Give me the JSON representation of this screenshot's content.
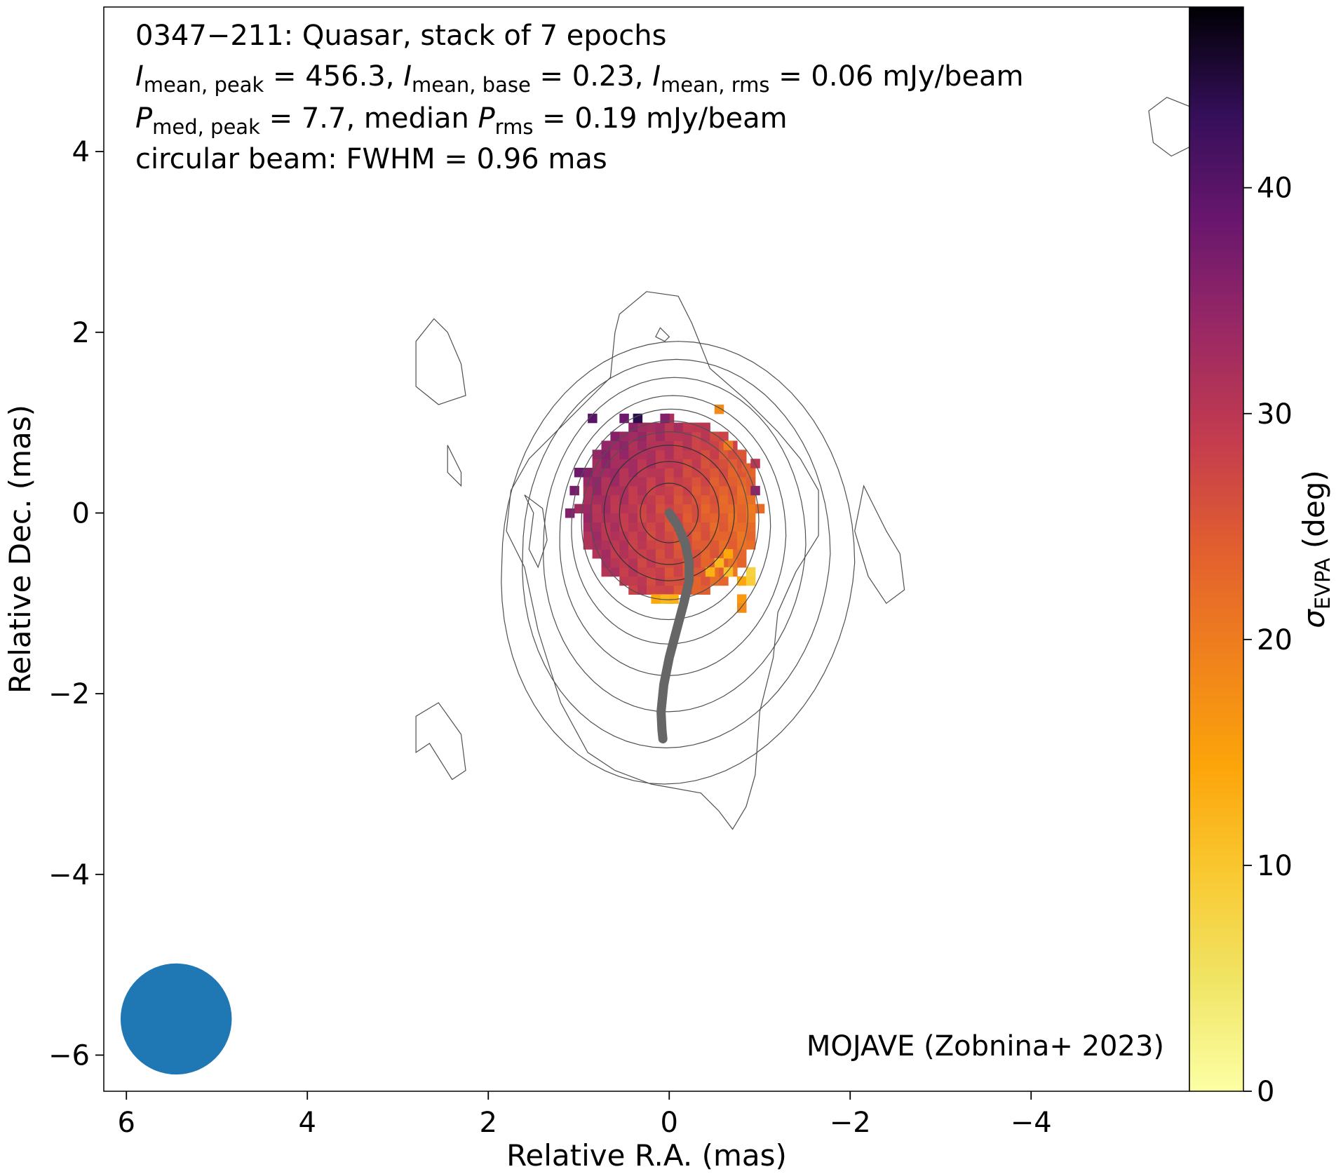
{
  "chart_data": {
    "type": "heatmap",
    "annotation_lines": [
      {
        "parts": [
          {
            "t": "0347−211: Quasar, stack of 7 epochs"
          }
        ]
      },
      {
        "parts": [
          {
            "t": "I",
            "style": "italic"
          },
          {
            "t": "mean, peak",
            "style": "sub"
          },
          {
            "t": " = 456.3, "
          },
          {
            "t": "I",
            "style": "italic"
          },
          {
            "t": "mean, base",
            "style": "sub"
          },
          {
            "t": " = 0.23, "
          },
          {
            "t": "I",
            "style": "italic"
          },
          {
            "t": "mean, rms",
            "style": "sub"
          },
          {
            "t": " = 0.06 mJy/beam"
          }
        ]
      },
      {
        "parts": [
          {
            "t": "P",
            "style": "italic"
          },
          {
            "t": "med, peak",
            "style": "sub"
          },
          {
            "t": " = 7.7, median "
          },
          {
            "t": "P",
            "style": "italic"
          },
          {
            "t": "rms",
            "style": "sub"
          },
          {
            "t": " = 0.19 mJy/beam"
          }
        ]
      },
      {
        "parts": [
          {
            "t": "circular beam: FWHM = 0.96 mas"
          }
        ]
      }
    ],
    "credit": "MOJAVE (Zobnina+ 2023)",
    "xlabel": "Relative R.A. (mas)",
    "ylabel": "Relative Dec. (mas)",
    "colorbar_label": {
      "symbol": "σ",
      "sub": "EVPA",
      "unit": " (deg)"
    },
    "xlim": [
      6.25,
      -5.75
    ],
    "ylim": [
      -6.4,
      5.6
    ],
    "xticks": [
      6,
      4,
      2,
      0,
      -2,
      -4
    ],
    "yticks": [
      4,
      2,
      0,
      -2,
      -4,
      -6
    ],
    "colorbar": {
      "colormap": "inferno_r",
      "range": [
        0,
        48
      ],
      "ticks": [
        0,
        10,
        20,
        30,
        40
      ]
    },
    "sigma_evpa_map": {
      "cell_size_mas": 0.1,
      "core_center": [
        0.0,
        0.05
      ],
      "core_radius_mas": 1.0,
      "typical_value_deg": 27,
      "edge_patches": [
        {
          "ra": 0.85,
          "dec": 1.05,
          "value": 40
        },
        {
          "ra": 0.35,
          "dec": 1.05,
          "value": 44
        },
        {
          "ra": 0.5,
          "dec": 1.05,
          "value": 38
        },
        {
          "ra": 0.05,
          "dec": 1.05,
          "value": 36
        },
        {
          "ra": -0.55,
          "dec": 1.15,
          "value": 18
        },
        {
          "ra": -0.65,
          "dec": 0.75,
          "value": 20
        },
        {
          "ra": -0.85,
          "dec": 0.5,
          "value": 24
        },
        {
          "ra": -0.95,
          "dec": 0.25,
          "value": 35
        },
        {
          "ra": -0.95,
          "dec": 0.55,
          "value": 30
        },
        {
          "ra": 1.0,
          "dec": 0.45,
          "value": 38
        },
        {
          "ra": 1.05,
          "dec": 0.25,
          "value": 37
        },
        {
          "ra": 1.1,
          "dec": 0.0,
          "value": 36
        },
        {
          "ra": -0.8,
          "dec": -0.75,
          "value": 14
        },
        {
          "ra": -0.9,
          "dec": -0.65,
          "value": 8
        },
        {
          "ra": -0.9,
          "dec": -0.75,
          "value": 9
        },
        {
          "ra": -0.8,
          "dec": -0.95,
          "value": 16
        },
        {
          "ra": -0.8,
          "dec": -1.05,
          "value": 18
        },
        {
          "ra": 0.05,
          "dec": -0.95,
          "value": 12
        },
        {
          "ra": -0.05,
          "dec": -0.95,
          "value": 13
        },
        {
          "ra": 0.15,
          "dec": -0.95,
          "value": 14
        },
        {
          "ra": -0.55,
          "dec": -0.55,
          "value": 12
        },
        {
          "ra": -0.65,
          "dec": -0.45,
          "value": 14
        },
        {
          "ra": -0.45,
          "dec": -0.65,
          "value": 13
        },
        {
          "ra": -0.65,
          "dec": -0.65,
          "value": 11
        }
      ]
    },
    "stokes_i_contours": [
      {
        "level": 1,
        "center": [
          -0.1,
          -0.55
        ],
        "rx": 1.95,
        "ry": 2.45,
        "skew": 0.18
      },
      {
        "level": 2,
        "center": [
          -0.08,
          -0.45
        ],
        "rx": 1.7,
        "ry": 2.15,
        "skew": 0.15
      },
      {
        "level": 3,
        "center": [
          -0.06,
          -0.35
        ],
        "rx": 1.45,
        "ry": 1.85,
        "skew": 0.12
      },
      {
        "level": 4,
        "center": [
          -0.04,
          -0.25
        ],
        "rx": 1.25,
        "ry": 1.55,
        "skew": 0.1
      },
      {
        "level": 5,
        "center": [
          -0.02,
          -0.15
        ],
        "rx": 1.1,
        "ry": 1.3,
        "skew": 0.07
      },
      {
        "level": 6,
        "center": [
          -0.01,
          -0.08
        ],
        "rx": 0.98,
        "ry": 1.1,
        "skew": 0.05
      },
      {
        "level": 7,
        "center": [
          0.0,
          -0.03
        ],
        "rx": 0.87,
        "ry": 0.93,
        "skew": 0.03
      },
      {
        "level": 8,
        "center": [
          0.0,
          0.0
        ],
        "rx": 0.72,
        "ry": 0.75,
        "skew": 0.0
      },
      {
        "level": 9,
        "center": [
          0.0,
          0.0
        ],
        "rx": 0.55,
        "ry": 0.57,
        "skew": 0.0
      },
      {
        "level": 10,
        "center": [
          0.0,
          0.0
        ],
        "rx": 0.32,
        "ry": 0.33,
        "skew": 0.0
      }
    ],
    "outer_contour": [
      [
        0.25,
        2.45
      ],
      [
        -0.1,
        2.4
      ],
      [
        -0.25,
        2.1
      ],
      [
        -0.45,
        1.6
      ],
      [
        -0.85,
        1.25
      ],
      [
        -1.2,
        0.9
      ],
      [
        -1.45,
        0.6
      ],
      [
        -1.65,
        0.25
      ],
      [
        -1.65,
        -0.25
      ],
      [
        -1.4,
        -0.65
      ],
      [
        -1.2,
        -1.1
      ],
      [
        -1.15,
        -1.6
      ],
      [
        -1.0,
        -2.2
      ],
      [
        -0.95,
        -2.9
      ],
      [
        -0.85,
        -3.25
      ],
      [
        -0.7,
        -3.5
      ],
      [
        -0.55,
        -3.3
      ],
      [
        -0.35,
        -3.1
      ],
      [
        0.2,
        -3.0
      ],
      [
        0.6,
        -2.85
      ],
      [
        0.9,
        -2.65
      ],
      [
        1.2,
        -2.1
      ],
      [
        1.45,
        -1.3
      ],
      [
        1.6,
        -0.6
      ],
      [
        1.8,
        -0.2
      ],
      [
        1.75,
        0.25
      ],
      [
        1.55,
        0.6
      ],
      [
        1.2,
        0.95
      ],
      [
        0.85,
        1.3
      ],
      [
        0.65,
        1.5
      ],
      [
        0.6,
        2.0
      ],
      [
        0.55,
        2.2
      ],
      [
        0.25,
        2.45
      ]
    ],
    "isolated_contours": [
      [
        [
          2.6,
          2.15
        ],
        [
          2.45,
          2.0
        ],
        [
          2.3,
          1.65
        ],
        [
          2.25,
          1.3
        ],
        [
          2.55,
          1.2
        ],
        [
          2.8,
          1.4
        ],
        [
          2.8,
          1.9
        ],
        [
          2.6,
          2.15
        ]
      ],
      [
        [
          1.6,
          0.2
        ],
        [
          1.5,
          0.0
        ],
        [
          1.55,
          -0.4
        ],
        [
          1.45,
          -0.6
        ],
        [
          1.35,
          -0.3
        ],
        [
          1.4,
          0.05
        ],
        [
          1.6,
          0.2
        ]
      ],
      [
        [
          2.45,
          0.75
        ],
        [
          2.3,
          0.45
        ],
        [
          2.3,
          0.3
        ],
        [
          2.45,
          0.45
        ],
        [
          2.45,
          0.75
        ]
      ],
      [
        [
          2.55,
          -2.1
        ],
        [
          2.8,
          -2.25
        ],
        [
          2.8,
          -2.65
        ],
        [
          2.65,
          -2.55
        ],
        [
          2.4,
          -2.95
        ],
        [
          2.25,
          -2.85
        ],
        [
          2.3,
          -2.45
        ],
        [
          2.55,
          -2.1
        ]
      ],
      [
        [
          -2.15,
          0.3
        ],
        [
          -2.25,
          0.1
        ],
        [
          -2.4,
          -0.2
        ],
        [
          -2.55,
          -0.45
        ],
        [
          -2.6,
          -0.85
        ],
        [
          -2.4,
          -1.0
        ],
        [
          -2.2,
          -0.7
        ],
        [
          -2.05,
          -0.2
        ],
        [
          -2.15,
          0.3
        ]
      ],
      [
        [
          -5.5,
          4.6
        ],
        [
          -5.75,
          4.5
        ],
        [
          -5.75,
          4.05
        ],
        [
          -5.55,
          3.95
        ],
        [
          -5.35,
          4.1
        ],
        [
          -5.3,
          4.45
        ],
        [
          -5.5,
          4.6
        ]
      ],
      [
        [
          0.1,
          2.05
        ],
        [
          0.0,
          1.95
        ],
        [
          0.05,
          1.9
        ],
        [
          0.15,
          1.95
        ],
        [
          0.1,
          2.05
        ]
      ]
    ],
    "ridge_line": [
      [
        0.0,
        0.0
      ],
      [
        -0.1,
        -0.15
      ],
      [
        -0.18,
        -0.35
      ],
      [
        -0.22,
        -0.55
      ],
      [
        -0.22,
        -0.75
      ],
      [
        -0.16,
        -1.0
      ],
      [
        -0.08,
        -1.3
      ],
      [
        0.0,
        -1.6
      ],
      [
        0.06,
        -1.9
      ],
      [
        0.09,
        -2.2
      ],
      [
        0.08,
        -2.4
      ],
      [
        0.07,
        -2.5
      ]
    ],
    "beam": {
      "center": [
        5.45,
        -5.6
      ],
      "fwhm_mas": 0.96,
      "color": "#1f77b4"
    },
    "colors": {
      "contour": "#505050",
      "ridge": "#666666"
    }
  }
}
